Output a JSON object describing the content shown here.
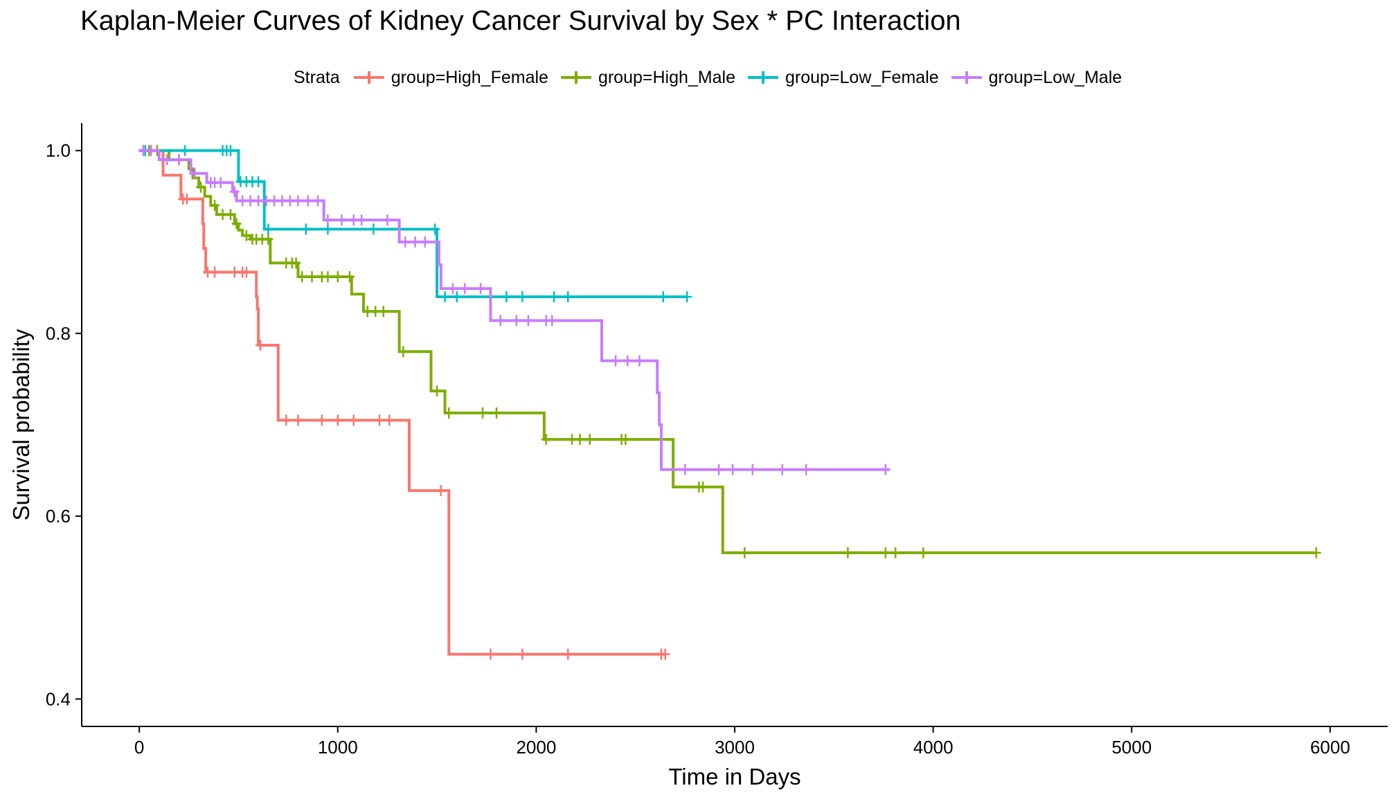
{
  "chart_data": {
    "type": "line",
    "step": true,
    "title": "Kaplan-Meier Curves of Kidney Cancer Survival by Sex * PC Interaction",
    "xlabel": "Time in Days",
    "ylabel": "Survival probability",
    "xlim": [
      -290,
      6290
    ],
    "ylim": [
      0.37,
      1.03
    ],
    "xticks": [
      0,
      1000,
      2000,
      3000,
      4000,
      5000,
      6000
    ],
    "xtick_labels": [
      "0",
      "1000",
      "2000",
      "3000",
      "4000",
      "5000",
      "6000"
    ],
    "yticks": [
      0.4,
      0.6,
      0.8,
      1.0
    ],
    "ytick_labels": [
      "0.4",
      "0.6",
      "0.8",
      "1.0"
    ],
    "grid": false,
    "legend": {
      "title": "Strata",
      "position": "top",
      "entries": [
        "group=High_Female",
        "group=High_Male",
        "group=Low_Female",
        "group=Low_Male"
      ]
    },
    "series": [
      {
        "name": "group=High_Female",
        "color": "#F8766D",
        "steps": [
          [
            0,
            1.0
          ],
          [
            120,
            0.973
          ],
          [
            210,
            0.947
          ],
          [
            320,
            0.92
          ],
          [
            325,
            0.893
          ],
          [
            335,
            0.867
          ],
          [
            590,
            0.84
          ],
          [
            595,
            0.827
          ],
          [
            600,
            0.787
          ],
          [
            700,
            0.705
          ],
          [
            1360,
            0.628
          ],
          [
            1560,
            0.449
          ]
        ],
        "end_x": 2650,
        "censored": [
          [
            20,
            1.0
          ],
          [
            50,
            1.0
          ],
          [
            220,
            0.947
          ],
          [
            240,
            0.947
          ],
          [
            345,
            0.867
          ],
          [
            380,
            0.867
          ],
          [
            480,
            0.867
          ],
          [
            520,
            0.867
          ],
          [
            540,
            0.867
          ],
          [
            610,
            0.787
          ],
          [
            740,
            0.705
          ],
          [
            800,
            0.705
          ],
          [
            920,
            0.705
          ],
          [
            1000,
            0.705
          ],
          [
            1080,
            0.705
          ],
          [
            1210,
            0.705
          ],
          [
            1260,
            0.705
          ],
          [
            1520,
            0.628
          ],
          [
            1770,
            0.449
          ],
          [
            1930,
            0.449
          ],
          [
            2160,
            0.449
          ],
          [
            2630,
            0.449
          ],
          [
            2650,
            0.449
          ]
        ]
      },
      {
        "name": "group=High_Male",
        "color": "#7CAE00",
        "steps": [
          [
            0,
            1.0
          ],
          [
            150,
            0.99
          ],
          [
            250,
            0.98
          ],
          [
            270,
            0.97
          ],
          [
            300,
            0.96
          ],
          [
            330,
            0.95
          ],
          [
            360,
            0.94
          ],
          [
            390,
            0.93
          ],
          [
            480,
            0.92
          ],
          [
            500,
            0.913
          ],
          [
            520,
            0.907
          ],
          [
            560,
            0.903
          ],
          [
            660,
            0.877
          ],
          [
            800,
            0.862
          ],
          [
            1070,
            0.843
          ],
          [
            1130,
            0.824
          ],
          [
            1310,
            0.78
          ],
          [
            1470,
            0.737
          ],
          [
            1540,
            0.713
          ],
          [
            2040,
            0.684
          ],
          [
            2690,
            0.632
          ],
          [
            2940,
            0.56
          ]
        ],
        "end_x": 5930,
        "censored": [
          [
            50,
            1.0
          ],
          [
            90,
            1.0
          ],
          [
            200,
            0.99
          ],
          [
            310,
            0.96
          ],
          [
            380,
            0.94
          ],
          [
            420,
            0.93
          ],
          [
            460,
            0.93
          ],
          [
            490,
            0.92
          ],
          [
            540,
            0.907
          ],
          [
            570,
            0.903
          ],
          [
            590,
            0.903
          ],
          [
            620,
            0.903
          ],
          [
            650,
            0.903
          ],
          [
            740,
            0.877
          ],
          [
            770,
            0.877
          ],
          [
            790,
            0.877
          ],
          [
            820,
            0.862
          ],
          [
            870,
            0.862
          ],
          [
            920,
            0.862
          ],
          [
            950,
            0.862
          ],
          [
            1000,
            0.862
          ],
          [
            1060,
            0.862
          ],
          [
            1150,
            0.824
          ],
          [
            1190,
            0.824
          ],
          [
            1230,
            0.824
          ],
          [
            1330,
            0.78
          ],
          [
            1500,
            0.737
          ],
          [
            1560,
            0.713
          ],
          [
            1730,
            0.713
          ],
          [
            1800,
            0.713
          ],
          [
            2050,
            0.684
          ],
          [
            2180,
            0.684
          ],
          [
            2220,
            0.684
          ],
          [
            2270,
            0.684
          ],
          [
            2430,
            0.684
          ],
          [
            2450,
            0.684
          ],
          [
            2630,
            0.684
          ],
          [
            2820,
            0.632
          ],
          [
            2840,
            0.632
          ],
          [
            3050,
            0.56
          ],
          [
            3570,
            0.56
          ],
          [
            3760,
            0.56
          ],
          [
            3810,
            0.56
          ],
          [
            3950,
            0.56
          ],
          [
            5930,
            0.56
          ]
        ]
      },
      {
        "name": "group=Low_Female",
        "color": "#00BFC4",
        "steps": [
          [
            0,
            1.0
          ],
          [
            500,
            0.966
          ],
          [
            630,
            0.914
          ],
          [
            1500,
            0.84
          ]
        ],
        "end_x": 2760,
        "censored": [
          [
            30,
            1.0
          ],
          [
            230,
            1.0
          ],
          [
            420,
            1.0
          ],
          [
            440,
            1.0
          ],
          [
            460,
            1.0
          ],
          [
            510,
            0.966
          ],
          [
            540,
            0.966
          ],
          [
            570,
            0.966
          ],
          [
            600,
            0.966
          ],
          [
            650,
            0.914
          ],
          [
            840,
            0.914
          ],
          [
            950,
            0.914
          ],
          [
            1180,
            0.914
          ],
          [
            1490,
            0.914
          ],
          [
            1540,
            0.84
          ],
          [
            1600,
            0.84
          ],
          [
            1850,
            0.84
          ],
          [
            1930,
            0.84
          ],
          [
            2090,
            0.84
          ],
          [
            2160,
            0.84
          ],
          [
            2640,
            0.84
          ],
          [
            2760,
            0.84
          ]
        ]
      },
      {
        "name": "group=Low_Male",
        "color": "#C77CFF",
        "steps": [
          [
            0,
            1.0
          ],
          [
            100,
            0.99
          ],
          [
            260,
            0.975
          ],
          [
            340,
            0.965
          ],
          [
            470,
            0.955
          ],
          [
            490,
            0.945
          ],
          [
            930,
            0.924
          ],
          [
            1310,
            0.9
          ],
          [
            1510,
            0.875
          ],
          [
            1520,
            0.849
          ],
          [
            1770,
            0.814
          ],
          [
            2330,
            0.77
          ],
          [
            2610,
            0.735
          ],
          [
            2620,
            0.7
          ],
          [
            2630,
            0.651
          ]
        ],
        "end_x": 3780,
        "censored": [
          [
            20,
            1.0
          ],
          [
            60,
            1.0
          ],
          [
            140,
            0.99
          ],
          [
            200,
            0.99
          ],
          [
            280,
            0.975
          ],
          [
            360,
            0.965
          ],
          [
            380,
            0.965
          ],
          [
            410,
            0.965
          ],
          [
            480,
            0.955
          ],
          [
            520,
            0.945
          ],
          [
            560,
            0.945
          ],
          [
            600,
            0.945
          ],
          [
            640,
            0.945
          ],
          [
            680,
            0.945
          ],
          [
            720,
            0.945
          ],
          [
            760,
            0.945
          ],
          [
            800,
            0.945
          ],
          [
            850,
            0.945
          ],
          [
            900,
            0.945
          ],
          [
            950,
            0.924
          ],
          [
            1020,
            0.924
          ],
          [
            1080,
            0.924
          ],
          [
            1120,
            0.924
          ],
          [
            1250,
            0.924
          ],
          [
            1340,
            0.9
          ],
          [
            1390,
            0.9
          ],
          [
            1440,
            0.9
          ],
          [
            1580,
            0.849
          ],
          [
            1640,
            0.849
          ],
          [
            1720,
            0.849
          ],
          [
            1820,
            0.814
          ],
          [
            1900,
            0.814
          ],
          [
            1960,
            0.814
          ],
          [
            2050,
            0.814
          ],
          [
            2080,
            0.814
          ],
          [
            2400,
            0.77
          ],
          [
            2460,
            0.77
          ],
          [
            2520,
            0.77
          ],
          [
            2750,
            0.651
          ],
          [
            2920,
            0.651
          ],
          [
            2990,
            0.651
          ],
          [
            3090,
            0.651
          ],
          [
            3240,
            0.651
          ],
          [
            3360,
            0.651
          ],
          [
            3760,
            0.651
          ]
        ]
      }
    ]
  }
}
